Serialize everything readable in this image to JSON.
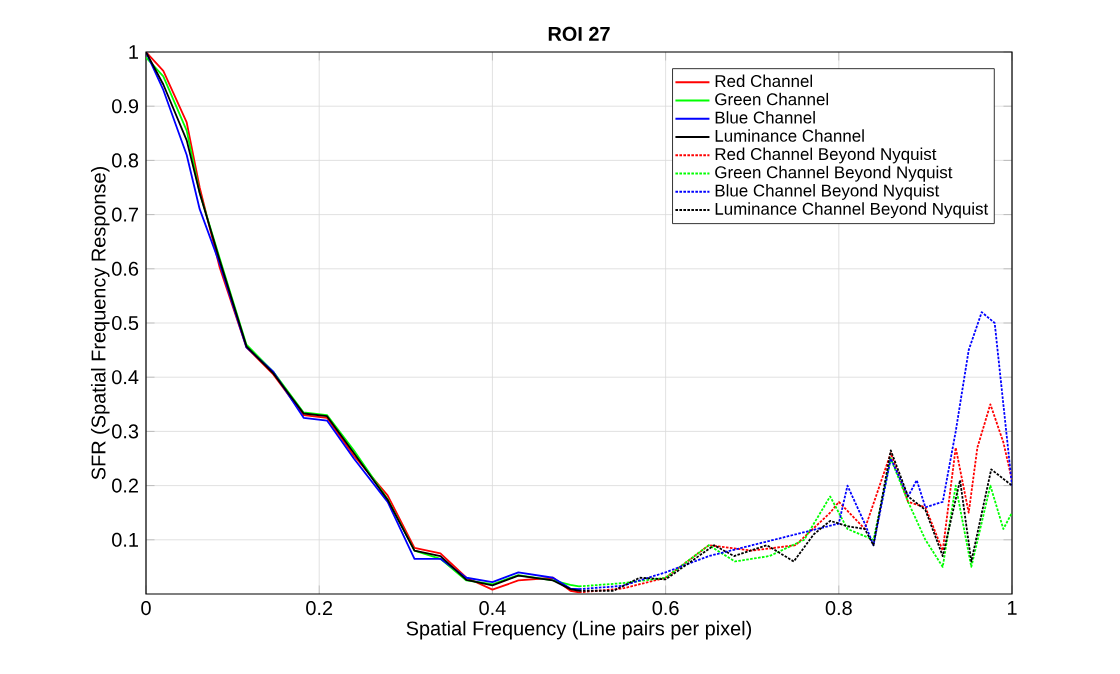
{
  "chart_data": {
    "type": "line",
    "title": "ROI 27",
    "xlabel": "Spatial Frequency (Line pairs per pixel)",
    "ylabel": "SFR (Spatial Frequency Response)",
    "xlim": [
      0,
      1
    ],
    "ylim": [
      0,
      1
    ],
    "xticks": [
      0,
      0.2,
      0.4,
      0.6,
      0.8,
      1
    ],
    "yticks": [
      0.1,
      0.2,
      0.3,
      0.4,
      0.5,
      0.6,
      0.7,
      0.8,
      0.9,
      1
    ],
    "grid": true,
    "legend": "top right",
    "marker": "none",
    "series": [
      {
        "name": "Red Channel",
        "color": "#ff0000",
        "line_style": "solid",
        "x": [
          0,
          0.02,
          0.047,
          0.062,
          0.085,
          0.116,
          0.147,
          0.182,
          0.209,
          0.24,
          0.279,
          0.31,
          0.34,
          0.37,
          0.4,
          0.43,
          0.47,
          0.49,
          0.5
        ],
        "values": [
          1.0,
          0.965,
          0.87,
          0.75,
          0.603,
          0.455,
          0.405,
          0.33,
          0.325,
          0.255,
          0.182,
          0.085,
          0.075,
          0.03,
          0.008,
          0.025,
          0.03,
          0.006,
          0.003
        ]
      },
      {
        "name": "Green Channel",
        "color": "#00ff00",
        "line_style": "solid",
        "x": [
          0,
          0.02,
          0.047,
          0.062,
          0.085,
          0.116,
          0.147,
          0.182,
          0.209,
          0.24,
          0.279,
          0.31,
          0.34,
          0.37,
          0.4,
          0.43,
          0.47,
          0.49,
          0.5
        ],
        "values": [
          0.99,
          0.955,
          0.855,
          0.74,
          0.62,
          0.46,
          0.41,
          0.335,
          0.33,
          0.265,
          0.175,
          0.08,
          0.065,
          0.025,
          0.018,
          0.035,
          0.025,
          0.017,
          0.014
        ]
      },
      {
        "name": "Blue Channel",
        "color": "#0000ff",
        "line_style": "solid",
        "x": [
          0,
          0.02,
          0.047,
          0.062,
          0.085,
          0.116,
          0.147,
          0.182,
          0.209,
          0.24,
          0.279,
          0.31,
          0.34,
          0.37,
          0.4,
          0.43,
          0.47,
          0.49,
          0.5
        ],
        "values": [
          1.0,
          0.93,
          0.81,
          0.71,
          0.61,
          0.455,
          0.41,
          0.325,
          0.32,
          0.25,
          0.17,
          0.065,
          0.065,
          0.03,
          0.022,
          0.04,
          0.03,
          0.01,
          0.009
        ]
      },
      {
        "name": "Luminance Channel",
        "color": "#000000",
        "line_style": "solid",
        "x": [
          0,
          0.02,
          0.047,
          0.062,
          0.085,
          0.116,
          0.147,
          0.182,
          0.209,
          0.24,
          0.279,
          0.31,
          0.34,
          0.37,
          0.4,
          0.43,
          0.47,
          0.49,
          0.5
        ],
        "values": [
          1.0,
          0.94,
          0.837,
          0.74,
          0.616,
          0.457,
          0.407,
          0.333,
          0.328,
          0.26,
          0.174,
          0.08,
          0.07,
          0.026,
          0.016,
          0.034,
          0.025,
          0.009,
          0.006
        ]
      },
      {
        "name": "Red Channel Beyond Nyquist",
        "color": "#ff0000",
        "line_style": "dotted",
        "x": [
          0.5,
          0.55,
          0.6,
          0.65,
          0.7,
          0.75,
          0.79,
          0.8,
          0.83,
          0.86,
          0.88,
          0.9,
          0.92,
          0.935,
          0.95,
          0.96,
          0.975,
          0.99,
          1.0
        ],
        "values": [
          0.003,
          0.01,
          0.03,
          0.09,
          0.08,
          0.09,
          0.15,
          0.17,
          0.12,
          0.26,
          0.17,
          0.16,
          0.08,
          0.27,
          0.15,
          0.27,
          0.35,
          0.28,
          0.21
        ]
      },
      {
        "name": "Green Channel Beyond Nyquist",
        "color": "#00ff00",
        "line_style": "dotted",
        "x": [
          0.5,
          0.55,
          0.6,
          0.65,
          0.68,
          0.72,
          0.76,
          0.79,
          0.81,
          0.84,
          0.86,
          0.88,
          0.9,
          0.92,
          0.935,
          0.953,
          0.975,
          0.99,
          1.0
        ],
        "values": [
          0.014,
          0.02,
          0.03,
          0.09,
          0.06,
          0.07,
          0.1,
          0.18,
          0.12,
          0.1,
          0.25,
          0.17,
          0.1,
          0.05,
          0.2,
          0.05,
          0.2,
          0.12,
          0.15
        ]
      },
      {
        "name": "Blue Channel Beyond Nyquist",
        "color": "#0000ff",
        "line_style": "dotted",
        "x": [
          0.5,
          0.55,
          0.6,
          0.65,
          0.7,
          0.75,
          0.8,
          0.81,
          0.83,
          0.84,
          0.86,
          0.88,
          0.89,
          0.9,
          0.92,
          0.935,
          0.95,
          0.965,
          0.98,
          0.99,
          1.0
        ],
        "values": [
          0.009,
          0.015,
          0.04,
          0.07,
          0.09,
          0.11,
          0.13,
          0.2,
          0.13,
          0.09,
          0.25,
          0.18,
          0.21,
          0.16,
          0.17,
          0.3,
          0.45,
          0.52,
          0.5,
          0.35,
          0.2
        ]
      },
      {
        "name": "Luminance Channel Beyond Nyquist",
        "color": "#000000",
        "line_style": "dotted",
        "x": [
          0.5,
          0.54,
          0.57,
          0.6,
          0.625,
          0.656,
          0.679,
          0.717,
          0.748,
          0.771,
          0.79,
          0.81,
          0.83,
          0.84,
          0.86,
          0.88,
          0.9,
          0.92,
          0.94,
          0.953,
          0.976,
          1.0
        ],
        "values": [
          0.006,
          0.006,
          0.03,
          0.027,
          0.055,
          0.09,
          0.07,
          0.09,
          0.06,
          0.11,
          0.135,
          0.125,
          0.12,
          0.09,
          0.265,
          0.18,
          0.155,
          0.07,
          0.21,
          0.06,
          0.23,
          0.2
        ]
      }
    ]
  }
}
